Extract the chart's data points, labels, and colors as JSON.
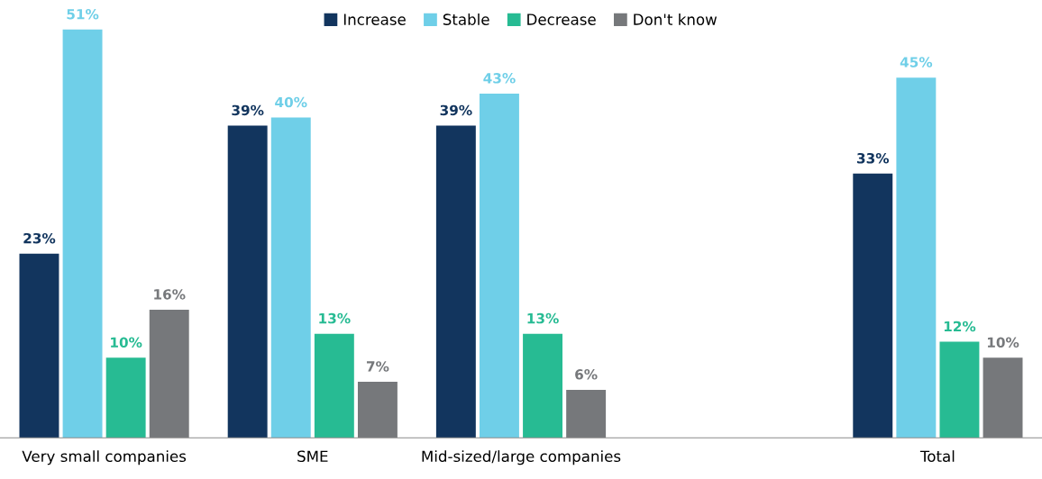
{
  "chart_data": {
    "type": "bar",
    "categories": [
      "Very small companies",
      "SME",
      "Mid-sized/large companies",
      null,
      "Total"
    ],
    "series": [
      {
        "name": "Increase",
        "color": "#12355e",
        "values": [
          23,
          39,
          39,
          null,
          33
        ],
        "value_labels": [
          "23%",
          "39%",
          "39%",
          null,
          "33%"
        ]
      },
      {
        "name": "Stable",
        "color": "#6fcfe8",
        "values": [
          51,
          40,
          43,
          null,
          45
        ],
        "value_labels": [
          "51%",
          "40%",
          "43%",
          null,
          "45%"
        ]
      },
      {
        "name": "Decrease",
        "color": "#27bb93",
        "values": [
          10,
          13,
          13,
          null,
          12
        ],
        "value_labels": [
          "10%",
          "13%",
          "13%",
          null,
          "12%"
        ]
      },
      {
        "name": "Don't know",
        "color": "#76787b",
        "values": [
          16,
          7,
          6,
          null,
          10
        ],
        "value_labels": [
          "16%",
          "7%",
          "6%",
          null,
          "10%"
        ]
      }
    ],
    "grid": false,
    "legend": "top"
  }
}
